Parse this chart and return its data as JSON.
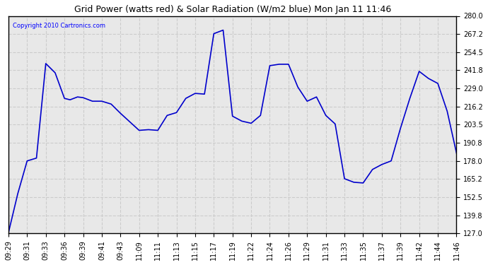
{
  "title": "Grid Power (watts red) & Solar Radiation (W/m2 blue) Mon Jan 11 11:46",
  "copyright": "Copyright 2010 Cartronics.com",
  "line_color": "#0000CC",
  "bg_color": "#ffffff",
  "plot_bg_color": "#e8e8e8",
  "grid_color": "#cccccc",
  "grid_style": "--",
  "ylim": [
    127.0,
    280.0
  ],
  "yticks": [
    127.0,
    139.8,
    152.5,
    165.2,
    178.0,
    190.8,
    203.5,
    216.2,
    229.0,
    241.8,
    254.5,
    267.2,
    280.0
  ],
  "x_labels": [
    "09:29",
    "09:31",
    "09:33",
    "09:36",
    "09:39",
    "09:41",
    "09:43",
    "11:09",
    "11:11",
    "11:13",
    "11:15",
    "11:17",
    "11:19",
    "11:22",
    "11:24",
    "11:26",
    "11:29",
    "11:31",
    "11:33",
    "11:35",
    "11:37",
    "11:39",
    "11:42",
    "11:44",
    "11:46"
  ],
  "detailed_x": [
    0,
    0.5,
    1,
    1.5,
    2,
    2.5,
    3,
    3.3,
    3.7,
    4,
    4.5,
    5,
    5.5,
    6,
    7,
    7.5,
    8,
    8.5,
    9,
    9.5,
    10,
    10.5,
    11,
    11.5,
    12,
    12.5,
    13,
    13.5,
    14,
    14.5,
    15,
    15.5,
    16,
    16.5,
    17,
    17.5,
    18,
    18.5,
    19,
    19.5,
    20,
    20.5,
    21,
    21.5,
    22,
    22.5,
    23,
    23.5,
    24
  ],
  "detailed_y": [
    127.5,
    155,
    178.0,
    180,
    246.5,
    240,
    222.0,
    221,
    223,
    222.5,
    220,
    220.0,
    218,
    211.5,
    199.5,
    200,
    199.5,
    210,
    212.0,
    222,
    225.5,
    225,
    267.5,
    270,
    209.5,
    206,
    204.5,
    210,
    245.0,
    246,
    246.0,
    230,
    220.0,
    223,
    210.0,
    204,
    165.5,
    163,
    162.5,
    172,
    175.5,
    178,
    201,
    222,
    241.0,
    236,
    232.5,
    213,
    183.5
  ]
}
